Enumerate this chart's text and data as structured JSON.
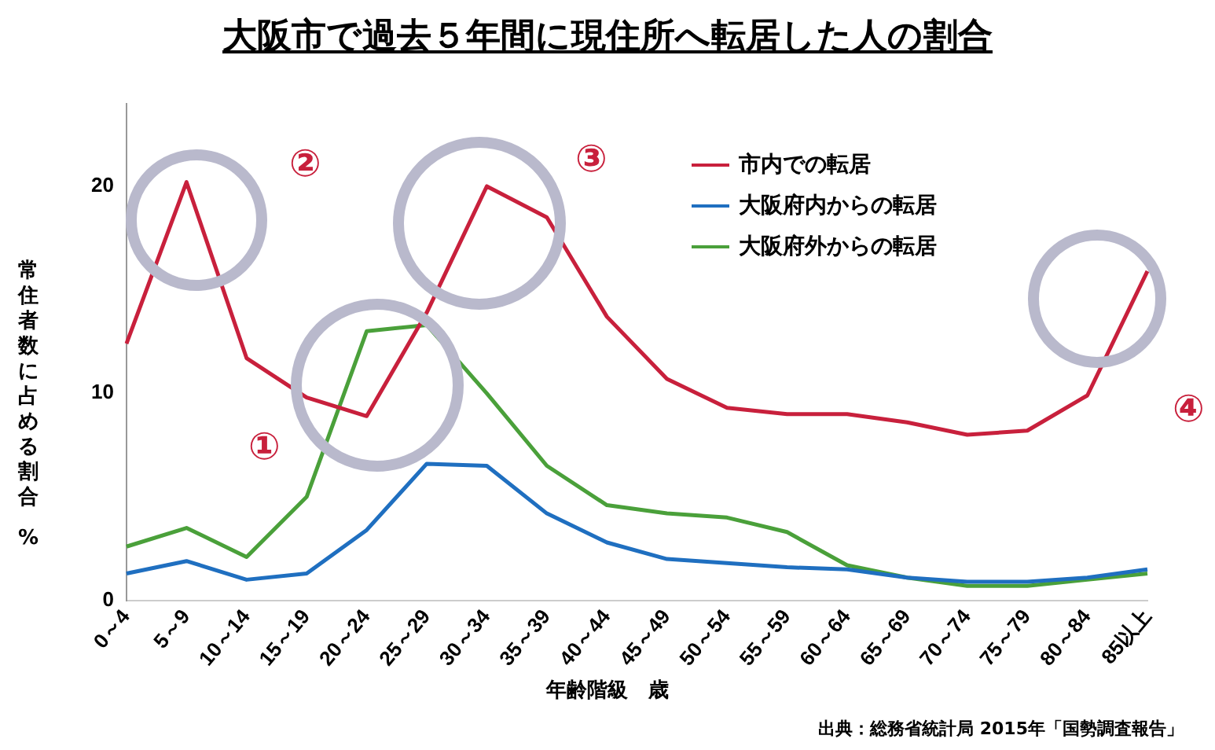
{
  "chart_data": {
    "type": "line",
    "title": "大阪市で過去５年間に現住所へ転居した人の割合",
    "xlabel": "年齢階級　歳",
    "ylabel": "常住者数に占める割合　%",
    "categories": [
      "0～4",
      "5～9",
      "10～14",
      "15～19",
      "20～24",
      "25～29",
      "30～34",
      "35～39",
      "40～44",
      "45～49",
      "50～54",
      "55～59",
      "60～64",
      "65～69",
      "70～74",
      "75～79",
      "80～84",
      "85以上"
    ],
    "series": [
      {
        "name": "市内での転居",
        "color": "#c8203c",
        "values": [
          12.4,
          20.2,
          11.7,
          9.8,
          8.9,
          13.9,
          20.0,
          18.5,
          13.7,
          10.7,
          9.3,
          9.0,
          9.0,
          8.6,
          8.0,
          8.2,
          9.9,
          15.9
        ]
      },
      {
        "name": "大阪府内からの転居",
        "color": "#1f6fc0",
        "values": [
          1.3,
          1.9,
          1.0,
          1.3,
          3.4,
          6.6,
          6.5,
          4.2,
          2.8,
          2.0,
          1.8,
          1.6,
          1.5,
          1.1,
          0.9,
          0.9,
          1.1,
          1.5
        ]
      },
      {
        "name": "大阪府外からの転居",
        "color": "#4aa03a",
        "values": [
          2.6,
          3.5,
          2.1,
          5.0,
          13.0,
          13.3,
          10.0,
          6.5,
          4.6,
          4.2,
          4.0,
          3.3,
          1.7,
          1.1,
          0.7,
          0.7,
          1.0,
          1.3
        ]
      }
    ],
    "ylim": [
      0,
      24
    ],
    "yticks": [
      0,
      10,
      20
    ],
    "grid": false,
    "legend": "top right",
    "marker": "none",
    "line_style": "solid",
    "annotations": [
      "①",
      "②",
      "③",
      "④",
      "出典：総務省統計局 2015年「国勢調査報告」"
    ]
  }
}
